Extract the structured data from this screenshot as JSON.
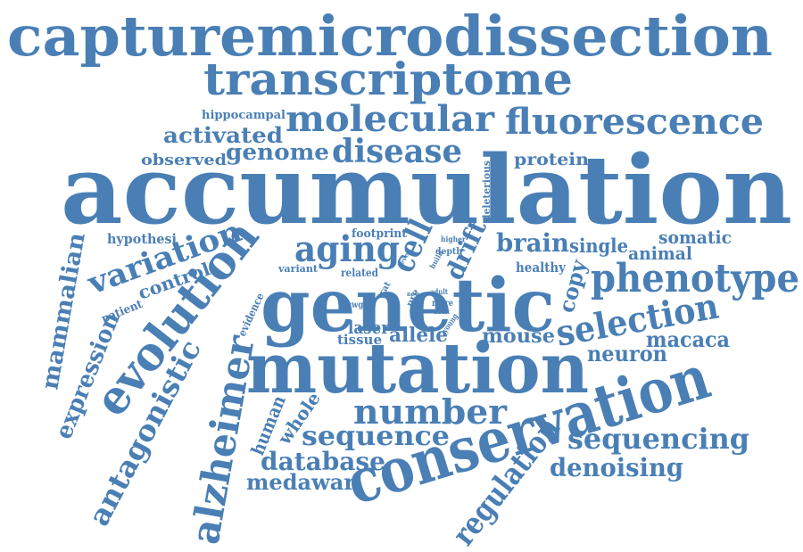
{
  "colors": {
    "word": "#4a7fb5",
    "background": "#ffffff"
  },
  "words": {
    "capturemicrodissection": "capturemicrodissection",
    "transcriptome": "transcriptome",
    "molecular": "molecular",
    "fluorescence": "fluorescence",
    "hippocampal": "hippocampal",
    "activated": "activated",
    "genome": "genome",
    "disease": "disease",
    "observed": "observed",
    "protein": "protein",
    "accumulation": "accumulation",
    "deleterious": "deleterious",
    "hypothesi": "hypothesi",
    "footprint": "footprint",
    "aging": "aging",
    "cell": "cell",
    "drift": "drift",
    "higher": "higher",
    "depth": "depth",
    "brain": "brain",
    "single": "single",
    "somatic": "somatic",
    "animal": "animal",
    "mammalian": "mammalian",
    "variation": "variation",
    "variant": "variant",
    "related": "related",
    "healthy": "healthy",
    "phenotype": "phenotype",
    "control": "control",
    "patient": "patient",
    "genetic": "genetic",
    "copy": "copy",
    "evolution": "evolution",
    "evidence": "evidence",
    "rat": "rat",
    "selection": "selection",
    "scwgs": "scwgs",
    "more": "more",
    "adult": "adult",
    "young": "young",
    "laser": "laser",
    "allele": "allele",
    "tissue": "tissue",
    "mouse": "mouse",
    "macaca": "macaca",
    "expression": "expression",
    "alzheimer": "alzheimer",
    "mutation": "mutation",
    "neuron": "neuron",
    "antagonistic": "antagonistic",
    "human": "human",
    "whole": "whole",
    "number": "number",
    "conservation": "conservation",
    "sequence": "sequence",
    "sequencing": "sequencing",
    "database": "database",
    "denoising": "denoising",
    "medawar": "medawar",
    "regulation": "regulation",
    "level": "level",
    "pro": "pro",
    "new": "new",
    "build": "build"
  }
}
